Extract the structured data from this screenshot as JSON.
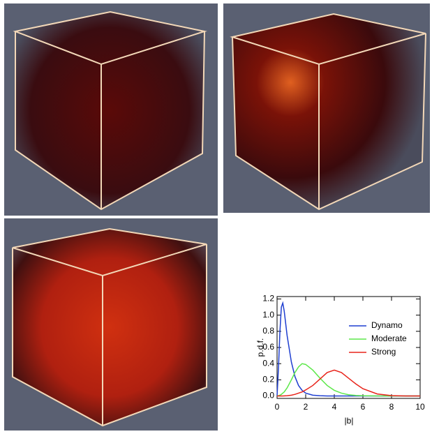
{
  "chart_data": {
    "type": "line",
    "xlabel": "|b|",
    "ylabel": "p.d.f.",
    "x": [
      0,
      0.1,
      0.2,
      0.3,
      0.4,
      0.5,
      0.7,
      1,
      1.25,
      1.5,
      1.75,
      2,
      2.5,
      3,
      3.5,
      4,
      4.5,
      5,
      5.5,
      6,
      7,
      8,
      9,
      10
    ],
    "series": [
      {
        "name": "Dynamo",
        "color": "#1f3fd0",
        "values": [
          0,
          0.35,
          0.8,
          1.1,
          1.15,
          1.05,
          0.75,
          0.42,
          0.24,
          0.13,
          0.07,
          0.035,
          0.01,
          0.003,
          0,
          0,
          0,
          0,
          0,
          0,
          0,
          0,
          0,
          0
        ]
      },
      {
        "name": "Moderate",
        "color": "#5de84a",
        "values": [
          0,
          0.005,
          0.01,
          0.02,
          0.035,
          0.05,
          0.1,
          0.2,
          0.29,
          0.36,
          0.4,
          0.39,
          0.32,
          0.22,
          0.13,
          0.07,
          0.035,
          0.015,
          0.007,
          0.003,
          0,
          0,
          0,
          0
        ]
      },
      {
        "name": "Strong",
        "color": "#e8231a",
        "values": [
          0,
          0,
          0,
          0,
          0,
          0.001,
          0.003,
          0.01,
          0.02,
          0.035,
          0.05,
          0.075,
          0.13,
          0.21,
          0.29,
          0.32,
          0.29,
          0.22,
          0.15,
          0.09,
          0.025,
          0.005,
          0,
          0
        ]
      }
    ],
    "xlim": [
      0,
      10
    ],
    "xticks": [
      0,
      2,
      4,
      6,
      8,
      10
    ],
    "ylim": [
      -0.03,
      1.23
    ],
    "yticks": [
      {
        "value": 0,
        "label": "0.0"
      },
      0.2,
      0.4,
      0.6,
      0.8,
      {
        "value": 1,
        "label": "1.0"
      },
      1.2
    ],
    "legend": "upper right"
  }
}
